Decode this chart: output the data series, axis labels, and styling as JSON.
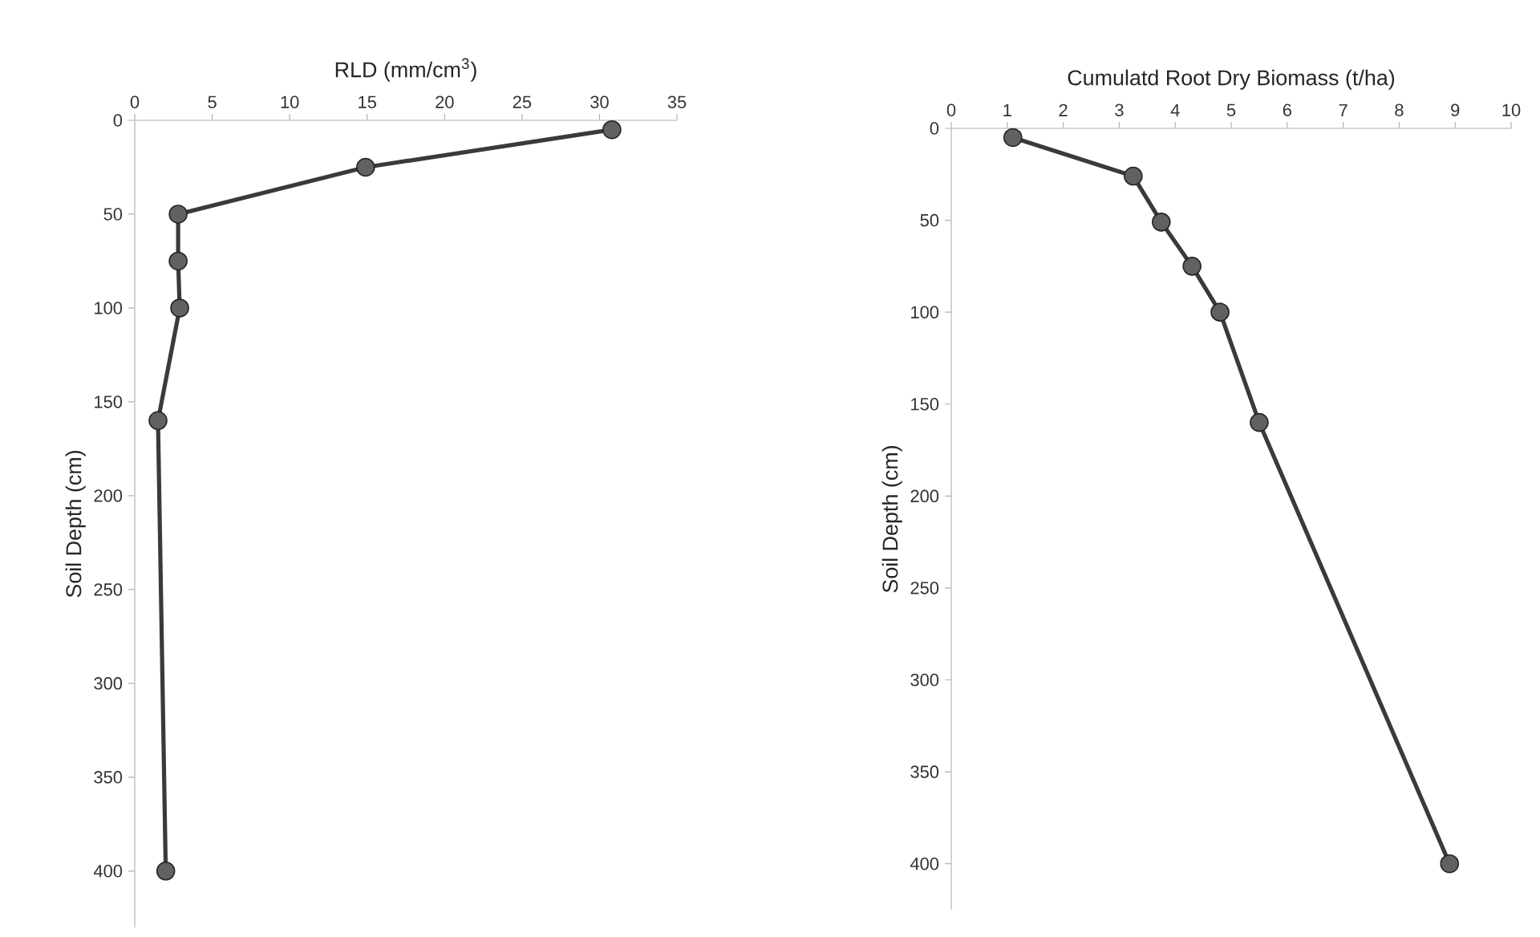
{
  "chart_data": [
    {
      "type": "line",
      "xlabel": "RLD (mm/cm$^{3}$)",
      "ylabel": "Soil Depth (cm)",
      "series": [
        {
          "color": "#3a3a3a",
          "x": [
            30.8,
            14.9,
            2.8,
            2.8,
            2.9,
            1.5,
            2.0
          ],
          "values": [
            5,
            25,
            50,
            75,
            100,
            160,
            400
          ]
        }
      ],
      "xlim": [
        0,
        35
      ],
      "xticks": [
        0,
        5,
        10,
        15,
        20,
        25,
        30,
        35
      ],
      "ylim": [
        430,
        0
      ],
      "yticks": [
        0,
        50,
        100,
        150,
        200,
        250,
        300,
        350,
        400
      ],
      "marker": "circle"
    },
    {
      "type": "line",
      "xlabel": "Cumulatd Root Dry Biomass (t/ha)",
      "ylabel": "Soil Depth (cm)",
      "series": [
        {
          "color": "#3a3a3a",
          "x": [
            1.1,
            3.25,
            3.75,
            4.3,
            4.8,
            5.5,
            8.9
          ],
          "values": [
            5,
            26,
            51,
            75,
            100,
            160,
            400
          ]
        }
      ],
      "xlim": [
        0,
        10
      ],
      "xticks": [
        0,
        1,
        2,
        3,
        4,
        5,
        6,
        7,
        8,
        9,
        10
      ],
      "ylim": [
        425,
        0
      ],
      "yticks": [
        0,
        50,
        100,
        150,
        200,
        250,
        300,
        350,
        400
      ],
      "marker": "circle"
    }
  ]
}
